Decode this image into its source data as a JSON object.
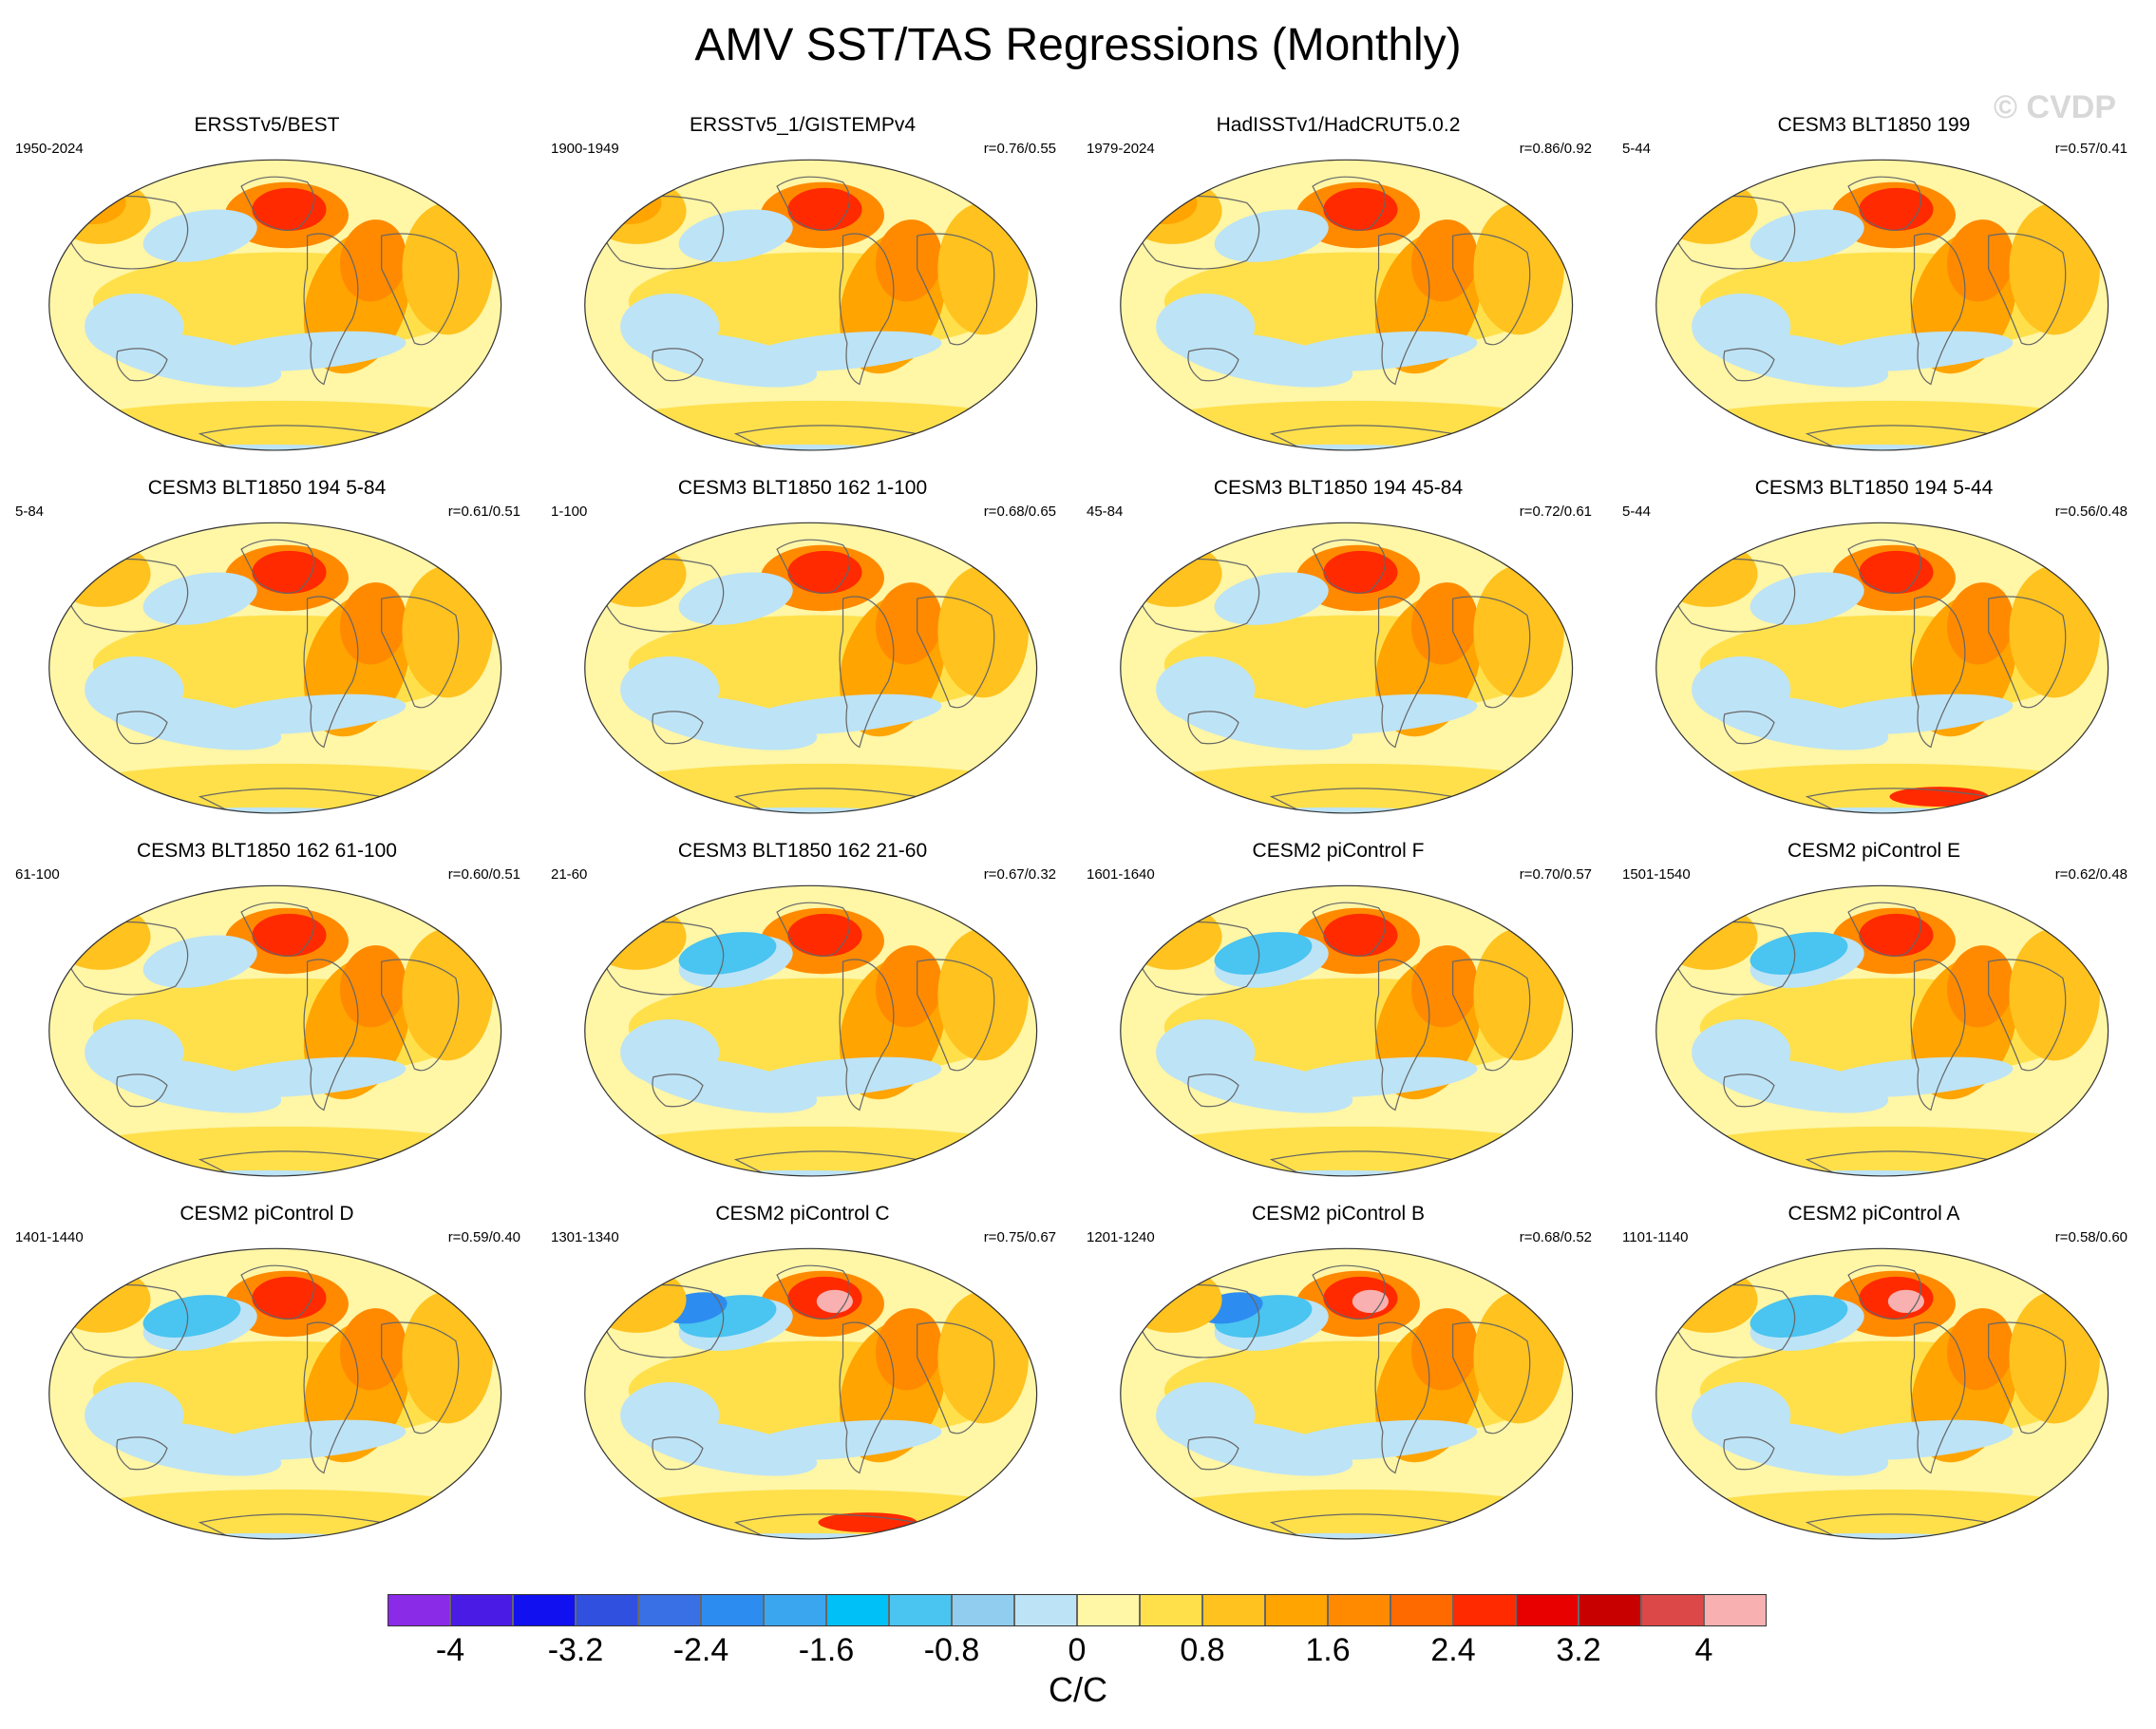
{
  "title": "AMV SST/TAS Regressions (Monthly)",
  "watermark": "© CVDP",
  "panels": [
    {
      "title": "ERSSTv5/BEST",
      "period": "1950-2024",
      "corr": "",
      "variant": 0
    },
    {
      "title": "ERSSTv5_1/GISTEMPv4",
      "period": "1900-1949",
      "corr": "r=0.76/0.55",
      "variant": 1
    },
    {
      "title": "HadISSTv1/HadCRUT5.0.2",
      "period": "1979-2024",
      "corr": "r=0.86/0.92",
      "variant": 2
    },
    {
      "title": "CESM3 BLT1850 199",
      "period": "5-44",
      "corr": "r=0.57/0.41",
      "variant": 3
    },
    {
      "title": "CESM3 BLT1850 194 5-84",
      "period": "5-84",
      "corr": "r=0.61/0.51",
      "variant": 4
    },
    {
      "title": "CESM3 BLT1850 162 1-100",
      "period": "1-100",
      "corr": "r=0.68/0.65",
      "variant": 5
    },
    {
      "title": "CESM3 BLT1850 194 45-84",
      "period": "45-84",
      "corr": "r=0.72/0.61",
      "variant": 6
    },
    {
      "title": "CESM3 BLT1850 194 5-44",
      "period": "5-44",
      "corr": "r=0.56/0.48",
      "variant": 7
    },
    {
      "title": "CESM3 BLT1850 162 61-100",
      "period": "61-100",
      "corr": "r=0.60/0.51",
      "variant": 8
    },
    {
      "title": "CESM3 BLT1850 162 21-60",
      "period": "21-60",
      "corr": "r=0.67/0.32",
      "variant": 9
    },
    {
      "title": "CESM2 piControl F",
      "period": "1601-1640",
      "corr": "r=0.70/0.57",
      "variant": 10
    },
    {
      "title": "CESM2 piControl E",
      "period": "1501-1540",
      "corr": "r=0.62/0.48",
      "variant": 11
    },
    {
      "title": "CESM2 piControl D",
      "period": "1401-1440",
      "corr": "r=0.59/0.40",
      "variant": 12
    },
    {
      "title": "CESM2 piControl C",
      "period": "1301-1340",
      "corr": "r=0.75/0.67",
      "variant": 13
    },
    {
      "title": "CESM2 piControl B",
      "period": "1201-1240",
      "corr": "r=0.68/0.52",
      "variant": 14
    },
    {
      "title": "CESM2 piControl A",
      "period": "1101-1140",
      "corr": "r=0.58/0.60",
      "variant": 15
    }
  ],
  "colorbar": {
    "colors": [
      "#8a2be8",
      "#4b1be6",
      "#1010f0",
      "#3050e0",
      "#3a70e6",
      "#2d8cf0",
      "#3aa6f0",
      "#00c0f8",
      "#4ac4f0",
      "#90cdee",
      "#bde3f6",
      "#fff6a6",
      "#ffe04a",
      "#ffc21e",
      "#ffa400",
      "#ff8a00",
      "#ff6a00",
      "#ff2a00",
      "#e80000",
      "#c80000",
      "#dc4848",
      "#f8b0b0"
    ],
    "tick_labels": [
      "-4",
      "-3.2",
      "-2.4",
      "-1.6",
      "-0.8",
      "0",
      "0.8",
      "1.6",
      "2.4",
      "3.2",
      "4"
    ],
    "unit": "C/C"
  }
}
